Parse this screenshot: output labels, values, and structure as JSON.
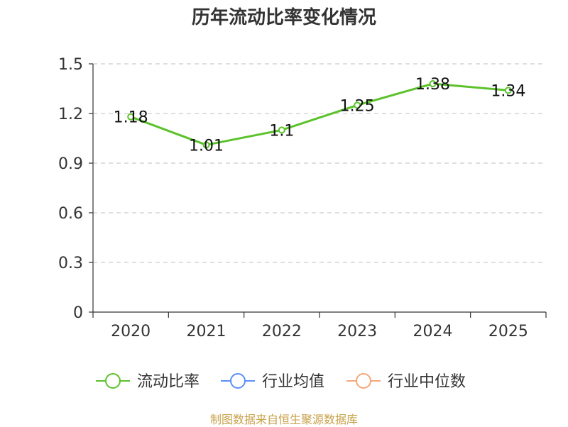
{
  "title": "历年流动比率变化情况",
  "source": "制图数据来自恒生聚源数据库",
  "chart_data": {
    "type": "line",
    "title": "历年流动比率变化情况",
    "xlabel": "",
    "ylabel": "",
    "categories": [
      "2020",
      "2021",
      "2022",
      "2023",
      "2024",
      "2025"
    ],
    "series": [
      {
        "name": "流动比率",
        "values": [
          1.18,
          1.01,
          1.1,
          1.25,
          1.38,
          1.34
        ],
        "labels": [
          "1.18",
          "1.01",
          "1.1",
          "1.25",
          "1.38",
          "1.34"
        ],
        "color": "#5cc22c"
      }
    ],
    "legend": [
      {
        "name": "流动比率",
        "color": "#5cc22c"
      },
      {
        "name": "行业均值",
        "color": "#5b8ff9"
      },
      {
        "name": "行业中位数",
        "color": "#f4a77a"
      }
    ],
    "legend_position": "bottom",
    "ylim": [
      0,
      1.5
    ],
    "yticks": [
      0,
      0.3,
      0.6,
      0.9,
      1.2,
      1.5
    ],
    "ytick_labels": [
      "0",
      "0.3",
      "0.6",
      "0.9",
      "1.2",
      "1.5"
    ],
    "grid": true,
    "grid_style": "dashed"
  }
}
